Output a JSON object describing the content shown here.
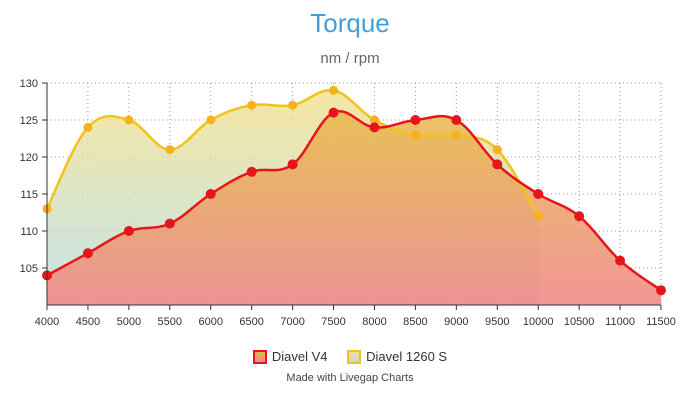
{
  "chart_data": {
    "type": "area",
    "title": "Torque",
    "subtitle": "nm / rpm",
    "xlabel": "",
    "ylabel": "",
    "x": [
      4000,
      4500,
      5000,
      5500,
      6000,
      6500,
      7000,
      7500,
      8000,
      8500,
      9000,
      9500,
      10000,
      10500,
      11000,
      11500
    ],
    "xlim": [
      4000,
      11500
    ],
    "ylim": [
      100,
      130
    ],
    "yticks": [
      105,
      110,
      115,
      120,
      125,
      130
    ],
    "grid": true,
    "legend_position": "bottom",
    "series": [
      {
        "name": "Diavel V4",
        "color": "#e8141c",
        "fill_top": "#e8b84a",
        "fill_bottom": "#f08a8a",
        "x": [
          4000,
          4500,
          5000,
          5500,
          6000,
          6500,
          7000,
          7500,
          8000,
          8500,
          9000,
          9500,
          10000,
          10500,
          11000,
          11500
        ],
        "values": [
          104,
          107,
          110,
          111,
          115,
          118,
          119,
          126,
          124,
          125,
          125,
          119,
          115,
          112,
          106,
          102
        ]
      },
      {
        "name": "Diavel 1260 S",
        "color": "#f1c21a",
        "fill_top": "#f3e08a",
        "fill_bottom": "#b5dde6",
        "x": [
          4000,
          4500,
          5000,
          5500,
          6000,
          6500,
          7000,
          7500,
          8000,
          8500,
          9000,
          9500,
          10000
        ],
        "values": [
          113,
          124,
          125,
          121,
          125,
          127,
          127,
          129,
          125,
          123,
          123,
          121,
          112
        ]
      }
    ]
  },
  "credit": "Made with Livegap Charts"
}
